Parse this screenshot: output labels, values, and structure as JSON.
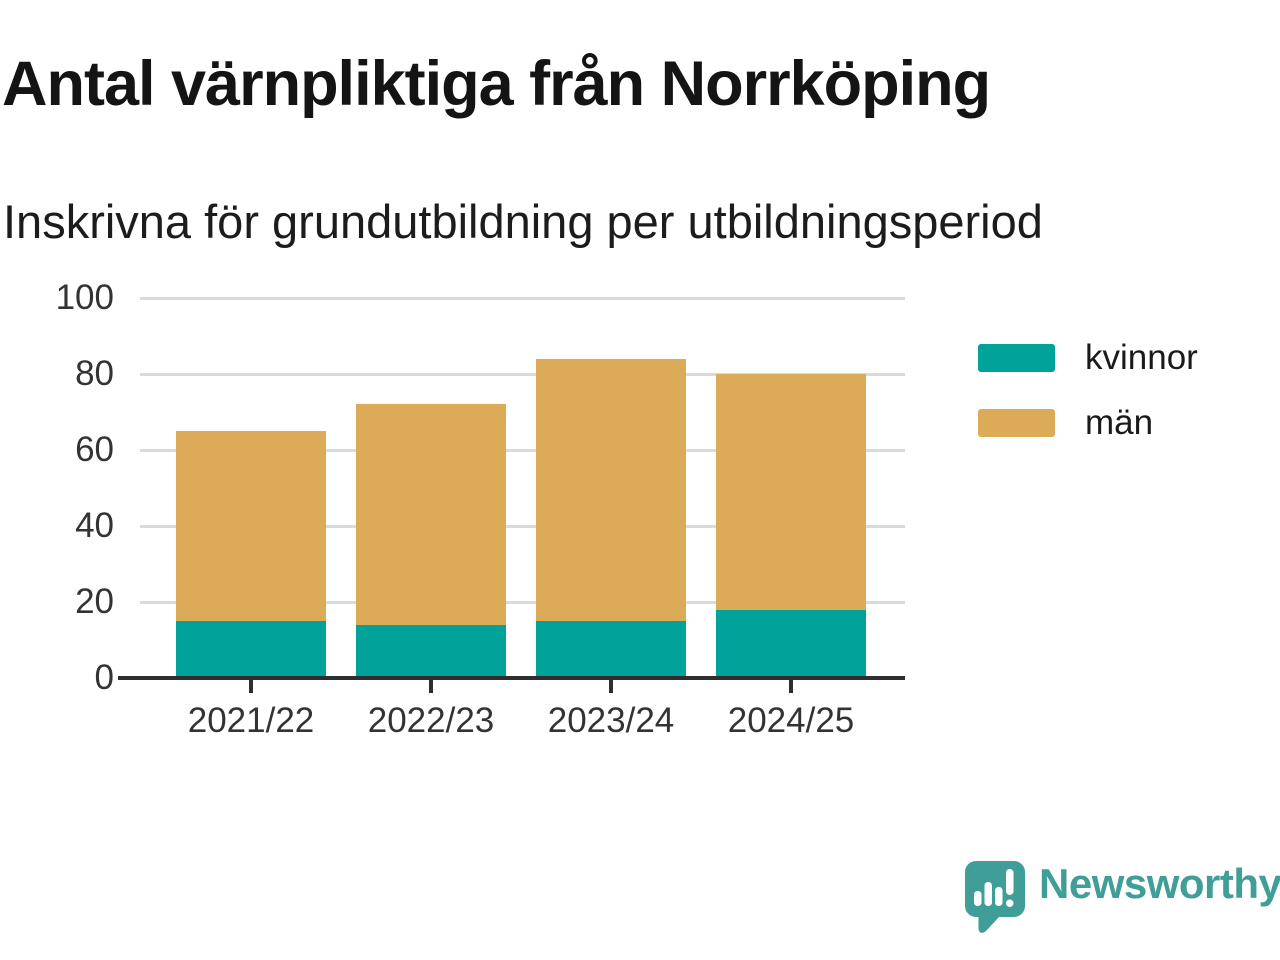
{
  "header": {
    "title": "Antal värnpliktiga från Norrköping",
    "subtitle": "Inskrivna för grundutbildning per utbildningsperiod"
  },
  "chart_data": {
    "type": "bar",
    "stacked": true,
    "title": "Antal värnpliktiga från Norrköping",
    "subtitle": "Inskrivna för grundutbildning per utbildningsperiod",
    "categories": [
      "2021/22",
      "2022/23",
      "2023/24",
      "2024/25"
    ],
    "series": [
      {
        "name": "kvinnor",
        "color": "#00a29a",
        "values": [
          15,
          14,
          15,
          18
        ]
      },
      {
        "name": "män",
        "color": "#dcab57",
        "values": [
          50,
          58,
          69,
          62
        ]
      }
    ],
    "stack_totals": [
      65,
      72,
      84,
      80
    ],
    "xlabel": "",
    "ylabel": "",
    "ylim": [
      0,
      100
    ],
    "yticks": [
      0,
      20,
      40,
      60,
      80,
      100
    ],
    "grid": "horizontal",
    "legend_position": "right"
  },
  "legend": {
    "items": [
      {
        "label": "kvinnor",
        "color": "#00a29a"
      },
      {
        "label": "män",
        "color": "#dcab57"
      }
    ]
  },
  "branding": {
    "logo_text": "Newsworthy",
    "logo_color": "#3f9e97",
    "logo_icon": "speech-bubble-bar-chart-icon"
  },
  "colors": {
    "kvinnor": "#00a29a",
    "men": "#dcab57",
    "axis": "#2e2e2e",
    "gridline": "#dadada",
    "title_text": "#141414",
    "tick_label_text": "#333333"
  }
}
